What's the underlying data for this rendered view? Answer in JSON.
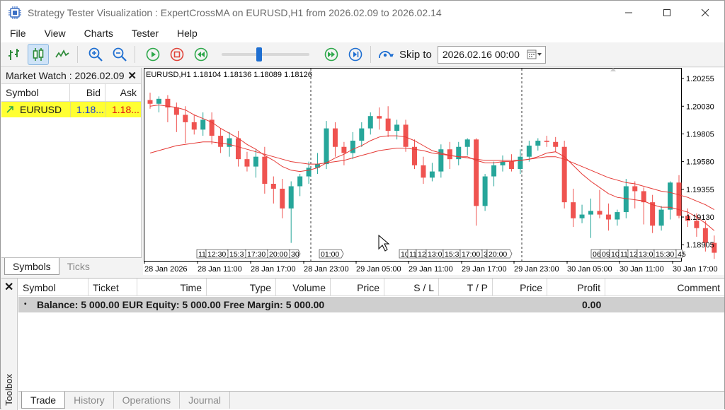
{
  "window": {
    "title": "Strategy Tester Visualization : ExpertCrossMA on EURUSD,H1 from 2026.02.09 to 2026.02.14"
  },
  "menu": [
    "File",
    "View",
    "Charts",
    "Tester",
    "Help"
  ],
  "toolbar": {
    "skip_label": "Skip to",
    "skip_value": "2026.02.16 00:00",
    "speed_level": 0.42,
    "icons": [
      "bar-chart-icon",
      "candlestick-chart-icon",
      "line-chart-icon",
      "zoom-in-icon",
      "zoom-out-icon",
      "play-icon",
      "stop-icon",
      "rewind-icon",
      "fast-forward-icon",
      "step-forward-icon",
      "skip-to-icon",
      "calendar-icon"
    ]
  },
  "market_watch": {
    "title": "Market Watch : 2026.02.09",
    "columns": [
      "Symbol",
      "Bid",
      "Ask"
    ],
    "rows": [
      {
        "symbol": "EURUSD",
        "bid": "1.18...",
        "ask": "1.18..."
      }
    ],
    "tabs": [
      "Symbols",
      "Ticks"
    ]
  },
  "chart": {
    "header": "EURUSD,H1  1.18104 1.18136 1.18089 1.18126",
    "y_ticks": [
      "1.20255",
      "1.20030",
      "1.19805",
      "1.19580",
      "1.19355",
      "1.19130",
      "1.18905"
    ],
    "x_ticks": [
      "28 Jan 2026",
      "28 Jan 11:00",
      "28 Jan 17:00",
      "28 Jan 23:00",
      "29 Jan 05:00",
      "29 Jan 11:00",
      "29 Jan 17:00",
      "29 Jan 23:00",
      "30 Jan 05:00",
      "30 Jan 11:00",
      "30 Jan 17:00"
    ],
    "time_tags_a": [
      "11",
      "12:30",
      "15:3",
      "17:30",
      "20:00",
      "30"
    ],
    "time_tags_b": [
      "01:00"
    ],
    "time_tags_c": [
      "10",
      "11",
      "12",
      "13:0",
      "15:3",
      "17:00",
      "3",
      "20:00"
    ],
    "time_tags_d": [
      "06",
      "09",
      "10",
      "11",
      "12",
      "13:0",
      "15:30",
      "45"
    ],
    "colors": {
      "bull": "#26a69a",
      "bear": "#ef5350",
      "ma": "#e53935"
    }
  },
  "chart_data": {
    "type": "candlestick",
    "title": "EURUSD,H1",
    "ylim": [
      1.1878,
      1.2033
    ],
    "candles": [
      [
        1.2008,
        1.2014,
        1.2001,
        1.2005
      ],
      [
        1.2005,
        1.2011,
        1.1998,
        1.2009
      ],
      [
        1.2009,
        1.2012,
        1.199,
        1.2002
      ],
      [
        1.2002,
        1.2006,
        1.1982,
        1.1996
      ],
      [
        1.1996,
        1.2003,
        1.1973,
        1.199
      ],
      [
        1.199,
        1.1996,
        1.198,
        1.1984
      ],
      [
        1.1984,
        1.1998,
        1.1979,
        1.1992
      ],
      [
        1.1992,
        1.1998,
        1.1972,
        1.1979
      ],
      [
        1.1979,
        1.1985,
        1.1965,
        1.197
      ],
      [
        1.197,
        1.1982,
        1.1962,
        1.1977
      ],
      [
        1.1977,
        1.1983,
        1.1954,
        1.196
      ],
      [
        1.196,
        1.1966,
        1.195,
        1.1954
      ],
      [
        1.1954,
        1.1968,
        1.1945,
        1.1962
      ],
      [
        1.1962,
        1.197,
        1.1932,
        1.194
      ],
      [
        1.194,
        1.1946,
        1.1924,
        1.1936
      ],
      [
        1.1936,
        1.1944,
        1.1912,
        1.192
      ],
      [
        1.192,
        1.1942,
        1.1892,
        1.1938
      ],
      [
        1.1938,
        1.1948,
        1.193,
        1.1946
      ],
      [
        1.1946,
        1.1958,
        1.194,
        1.1953
      ],
      [
        1.1953,
        1.1965,
        1.1948,
        1.1956
      ],
      [
        1.1956,
        1.1991,
        1.1952,
        1.1985
      ],
      [
        1.1985,
        1.199,
        1.1962,
        1.197
      ],
      [
        1.197,
        1.1974,
        1.1955,
        1.1965
      ],
      [
        1.1965,
        1.1982,
        1.196,
        1.1975
      ],
      [
        1.1975,
        1.199,
        1.197,
        1.1985
      ],
      [
        1.1985,
        1.1998,
        1.198,
        1.1995
      ],
      [
        1.1995,
        1.2002,
        1.1984,
        1.1993
      ],
      [
        1.1993,
        1.2003,
        1.1978,
        1.1983
      ],
      [
        1.1983,
        1.1992,
        1.1976,
        1.1988
      ],
      [
        1.1988,
        1.1992,
        1.1966,
        1.197
      ],
      [
        1.197,
        1.1976,
        1.1952,
        1.1955
      ],
      [
        1.1955,
        1.1962,
        1.194,
        1.1945
      ],
      [
        1.1945,
        1.1957,
        1.1942,
        1.195
      ],
      [
        1.195,
        1.1972,
        1.1945,
        1.1968
      ],
      [
        1.1968,
        1.1974,
        1.1952,
        1.196
      ],
      [
        1.196,
        1.1974,
        1.1955,
        1.197
      ],
      [
        1.197,
        1.1977,
        1.1963,
        1.1976
      ],
      [
        1.1976,
        1.1977,
        1.1906,
        1.1922
      ],
      [
        1.1922,
        1.1948,
        1.1918,
        1.1946
      ],
      [
        1.1946,
        1.1958,
        1.1938,
        1.1955
      ],
      [
        1.1955,
        1.1963,
        1.195,
        1.1958
      ],
      [
        1.1958,
        1.1964,
        1.195,
        1.1952
      ],
      [
        1.1952,
        1.1968,
        1.1948,
        1.1962
      ],
      [
        1.1962,
        1.1975,
        1.1958,
        1.1971
      ],
      [
        1.1971,
        1.1977,
        1.1967,
        1.1975
      ],
      [
        1.1975,
        1.1979,
        1.197,
        1.1974
      ],
      [
        1.1974,
        1.1978,
        1.1966,
        1.197
      ],
      [
        1.197,
        1.1975,
        1.192,
        1.1925
      ],
      [
        1.1925,
        1.1936,
        1.1905,
        1.1912
      ],
      [
        1.1912,
        1.1923,
        1.1908,
        1.1915
      ],
      [
        1.1915,
        1.1928,
        1.1896,
        1.1918
      ],
      [
        1.1918,
        1.1935,
        1.1912,
        1.1915
      ],
      [
        1.1915,
        1.1924,
        1.1902,
        1.1911
      ],
      [
        1.1911,
        1.1919,
        1.1906,
        1.1917
      ],
      [
        1.1917,
        1.1944,
        1.1912,
        1.1938
      ],
      [
        1.1938,
        1.1942,
        1.192,
        1.1934
      ],
      [
        1.1934,
        1.1937,
        1.1907,
        1.1925
      ],
      [
        1.1925,
        1.1931,
        1.19,
        1.1906
      ],
      [
        1.1906,
        1.1922,
        1.1902,
        1.1919
      ],
      [
        1.1919,
        1.1942,
        1.1911,
        1.1941
      ],
      [
        1.1941,
        1.1947,
        1.1912,
        1.1914
      ],
      [
        1.1914,
        1.192,
        1.1905,
        1.191
      ],
      [
        1.191,
        1.1916,
        1.1897,
        1.1904
      ],
      [
        1.1904,
        1.191,
        1.1885,
        1.1892
      ],
      [
        1.1892,
        1.1898,
        1.1879,
        1.1884
      ]
    ],
    "ma_fast": [
      1.2003,
      1.2004,
      1.2003,
      1.2002,
      1.2,
      1.1996,
      1.1993,
      1.199,
      1.1985,
      1.1981,
      1.1977,
      1.1972,
      1.1968,
      1.1963,
      1.1959,
      1.1954,
      1.1951,
      1.195,
      1.1951,
      1.1953,
      1.1957,
      1.1961,
      1.1964,
      1.1968,
      1.1971,
      1.1975,
      1.1978,
      1.1979,
      1.1979,
      1.1978,
      1.1975,
      1.1971,
      1.1967,
      1.1965,
      1.1963,
      1.1962,
      1.1962,
      1.1959,
      1.1957,
      1.1957,
      1.1958,
      1.1958,
      1.1959,
      1.196,
      1.1962,
      1.1965,
      1.1966,
      1.1962,
      1.1955,
      1.1948,
      1.1942,
      1.1937,
      1.1932,
      1.1929,
      1.1928,
      1.1927,
      1.1926,
      1.1923,
      1.1921,
      1.1921,
      1.1919,
      1.1917,
      1.1913,
      1.1908,
      1.1902
    ],
    "ma_slow": [
      1.1965,
      1.1967,
      1.1969,
      1.1971,
      1.1972,
      1.1973,
      1.1974,
      1.1974,
      1.1973,
      1.1972,
      1.197,
      1.1968,
      1.1966,
      1.1964,
      1.1962,
      1.196,
      1.1958,
      1.1957,
      1.1956,
      1.1956,
      1.1957,
      1.1958,
      1.1959,
      1.1961,
      1.1963,
      1.1965,
      1.1967,
      1.1968,
      1.1969,
      1.1969,
      1.1968,
      1.1967,
      1.1965,
      1.1964,
      1.1963,
      1.1962,
      1.1961,
      1.196,
      1.1959,
      1.1959,
      1.1959,
      1.1959,
      1.1959,
      1.196,
      1.1961,
      1.1962,
      1.1962,
      1.196,
      1.1957,
      1.1954,
      1.1951,
      1.1948,
      1.1945,
      1.1943,
      1.1941,
      1.194,
      1.1938,
      1.1936,
      1.1934,
      1.1933,
      1.1931,
      1.1929,
      1.1926,
      1.1923,
      1.1919
    ]
  },
  "toolbox": {
    "side_label": "Toolbox",
    "columns": [
      "Symbol",
      "Ticket",
      "Time",
      "Type",
      "Volume",
      "Price",
      "S / L",
      "T / P",
      "Price",
      "Profit",
      "Comment"
    ],
    "balance_text": "Balance: 5 000.00 EUR  Equity: 5 000.00  Free Margin: 5 000.00",
    "balance_profit": "0.00",
    "tabs": [
      "Trade",
      "History",
      "Operations",
      "Journal"
    ]
  }
}
